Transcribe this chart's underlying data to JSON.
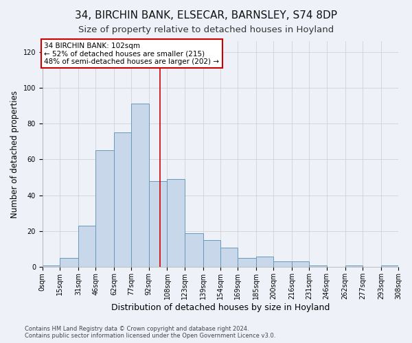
{
  "title": "34, BIRCHIN BANK, ELSECAR, BARNSLEY, S74 8DP",
  "subtitle": "Size of property relative to detached houses in Hoyland",
  "xlabel": "Distribution of detached houses by size in Hoyland",
  "ylabel": "Number of detached properties",
  "bar_color": "#c8d8ea",
  "bar_edge_color": "#6699bb",
  "background_color": "#eef2f8",
  "annotation_text": "34 BIRCHIN BANK: 102sqm\n← 52% of detached houses are smaller (215)\n48% of semi-detached houses are larger (202) →",
  "annotation_box_color": "#ffffff",
  "annotation_box_edge": "#cc0000",
  "vline_x": 102,
  "vline_color": "#cc0000",
  "footer": "Contains HM Land Registry data © Crown copyright and database right 2024.\nContains public sector information licensed under the Open Government Licence v3.0.",
  "bin_edges": [
    0,
    15,
    31,
    46,
    62,
    77,
    92,
    108,
    123,
    139,
    154,
    169,
    185,
    200,
    216,
    231,
    246,
    262,
    277,
    293,
    308
  ],
  "bin_labels": [
    "0sqm",
    "15sqm",
    "31sqm",
    "46sqm",
    "62sqm",
    "77sqm",
    "92sqm",
    "108sqm",
    "123sqm",
    "139sqm",
    "154sqm",
    "169sqm",
    "185sqm",
    "200sqm",
    "216sqm",
    "231sqm",
    "246sqm",
    "262sqm",
    "277sqm",
    "293sqm",
    "308sqm"
  ],
  "counts": [
    1,
    5,
    23,
    65,
    75,
    91,
    48,
    49,
    19,
    15,
    11,
    5,
    6,
    3,
    3,
    1,
    0,
    1,
    0,
    1
  ],
  "ylim": [
    0,
    126
  ],
  "yticks": [
    0,
    20,
    40,
    60,
    80,
    100,
    120
  ],
  "grid_color": "#cccccc",
  "title_fontsize": 11,
  "subtitle_fontsize": 9.5,
  "xlabel_fontsize": 9,
  "ylabel_fontsize": 8.5,
  "tick_fontsize": 7,
  "footer_fontsize": 6
}
